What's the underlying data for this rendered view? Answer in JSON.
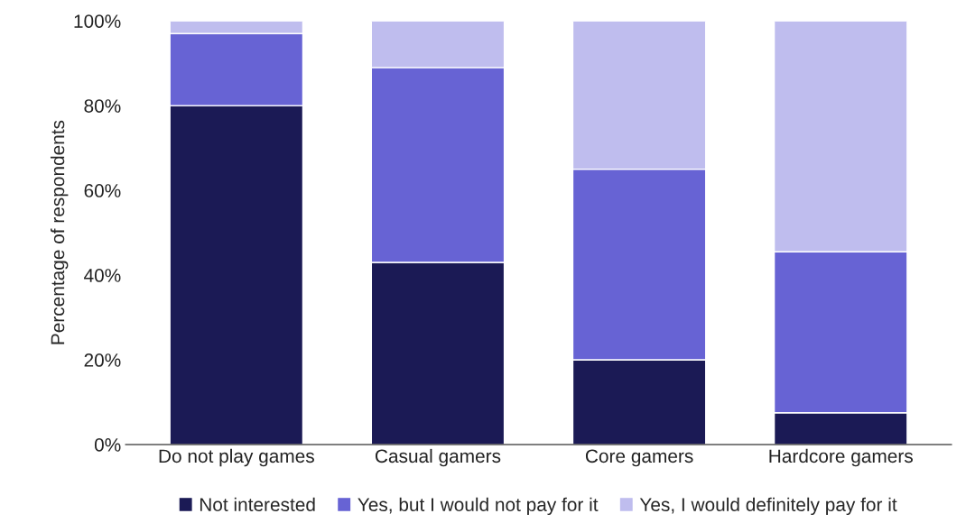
{
  "chart_data": {
    "type": "bar",
    "stacked": true,
    "ylabel": "Percentage of respondents",
    "categories": [
      "Do not play games",
      "Casual gamers",
      "Core gamers",
      "Hardcore gamers"
    ],
    "series": [
      {
        "name": "Not interested",
        "color": "#1b1a55",
        "values": [
          80,
          43,
          20,
          7.5
        ]
      },
      {
        "name": "Yes, but I would not pay for it",
        "color": "#6763d4",
        "values": [
          17,
          46,
          45,
          38
        ]
      },
      {
        "name": "Yes, I would definitely pay for it",
        "color": "#bfbdee",
        "values": [
          3,
          11,
          35,
          54.5
        ]
      }
    ],
    "ylim": [
      0,
      100
    ],
    "yticks": [
      {
        "value": 0,
        "label": "0%"
      },
      {
        "value": 20,
        "label": "20%"
      },
      {
        "value": 40,
        "label": "40%"
      },
      {
        "value": 60,
        "label": "60%"
      },
      {
        "value": 80,
        "label": "80%"
      },
      {
        "value": 100,
        "label": "100%"
      }
    ],
    "grid": false,
    "legend": "bottom"
  }
}
